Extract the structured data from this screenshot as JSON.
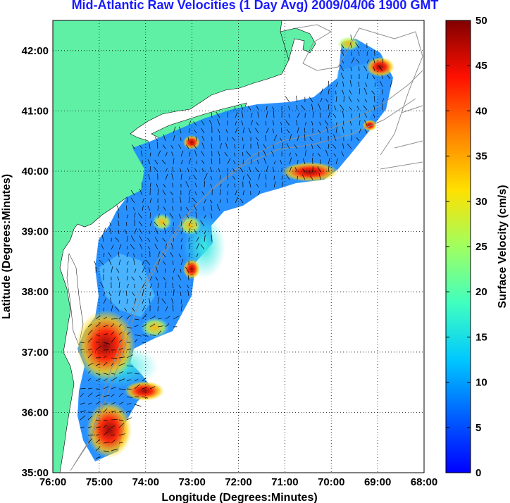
{
  "title": "Mid-Atlantic Raw Velocities (1 Day Avg) 2009/04/06 1900 GMT",
  "map": {
    "xlabel": "Longitude (Degrees:Minutes)",
    "ylabel": "Latitude (Degrees:Minutes)",
    "x_ticks": [
      "76:00",
      "75:00",
      "74:00",
      "73:00",
      "72:00",
      "71:00",
      "70:00",
      "69:00",
      "68:00"
    ],
    "y_ticks": [
      "42:00",
      "41:00",
      "40:00",
      "39:00",
      "38:00",
      "37:00",
      "36:00",
      "35:00"
    ],
    "lon_range": [
      -76,
      -68
    ],
    "lat_range": [
      35,
      42.5
    ],
    "land_color": "#5ff0a6",
    "grid": "dotted"
  },
  "colorbar": {
    "label": "Surface Velocity (cm/s)",
    "ticks": [
      "50",
      "45",
      "40",
      "35",
      "30",
      "25",
      "20",
      "15",
      "10",
      "5",
      "0"
    ],
    "range": [
      0,
      50
    ],
    "colormap": "jet"
  }
}
